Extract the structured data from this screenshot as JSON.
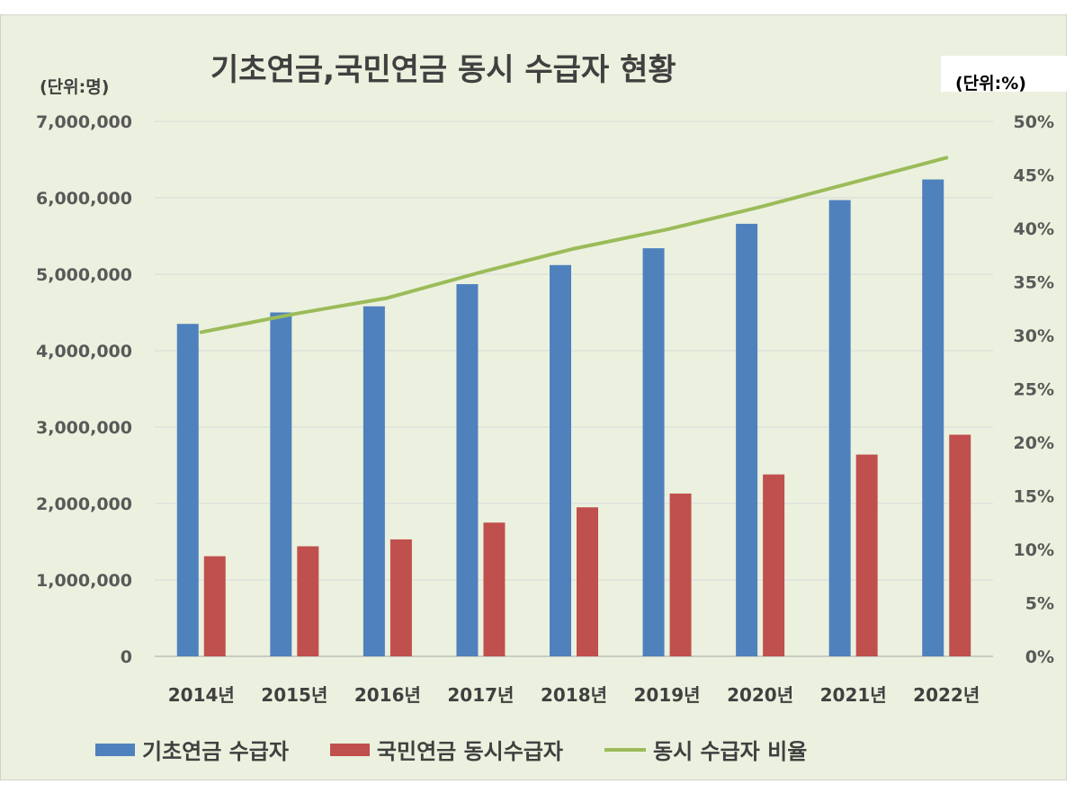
{
  "chart_data": {
    "type": "bar",
    "title": "기초연금,국민연금 동시 수급자 현황",
    "left_unit": "(단위:명)",
    "right_unit": "(단위:%)",
    "categories": [
      "2014년",
      "2015년",
      "2016년",
      "2017년",
      "2018년",
      "2019년",
      "2020년",
      "2021년",
      "2022년"
    ],
    "y_left": {
      "min": 0,
      "max": 7000000,
      "ticks": [
        0,
        1000000,
        2000000,
        3000000,
        4000000,
        5000000,
        6000000,
        7000000
      ],
      "tick_labels": [
        "0",
        "1,000,000",
        "2,000,000",
        "3,000,000",
        "4,000,000",
        "5,000,000",
        "6,000,000",
        "7,000,000"
      ]
    },
    "y_right": {
      "min": 0,
      "max": 50,
      "ticks": [
        0,
        5,
        10,
        15,
        20,
        25,
        30,
        35,
        40,
        45,
        50
      ],
      "tick_labels": [
        "0%",
        "5%",
        "10%",
        "15%",
        "20%",
        "25%",
        "30%",
        "35%",
        "40%",
        "45%",
        "50%"
      ]
    },
    "grid": "horizontal",
    "legend_position": "bottom",
    "series": [
      {
        "name": "기초연금 수급자",
        "type": "bar",
        "axis": "left",
        "color": "#4f81bd",
        "values": [
          4350000,
          4500000,
          4580000,
          4870000,
          5120000,
          5340000,
          5660000,
          5970000,
          6240000
        ]
      },
      {
        "name": "국민연금 동시수급자",
        "type": "bar",
        "axis": "left",
        "color": "#c0504d",
        "values": [
          1310000,
          1440000,
          1530000,
          1750000,
          1950000,
          2130000,
          2380000,
          2640000,
          2900000
        ]
      },
      {
        "name": "동시 수급자 비율",
        "type": "line",
        "axis": "right",
        "color": "#9bbb59",
        "values": [
          30.3,
          32.0,
          33.5,
          35.9,
          38.1,
          39.9,
          42.0,
          44.3,
          46.6
        ]
      }
    ]
  }
}
